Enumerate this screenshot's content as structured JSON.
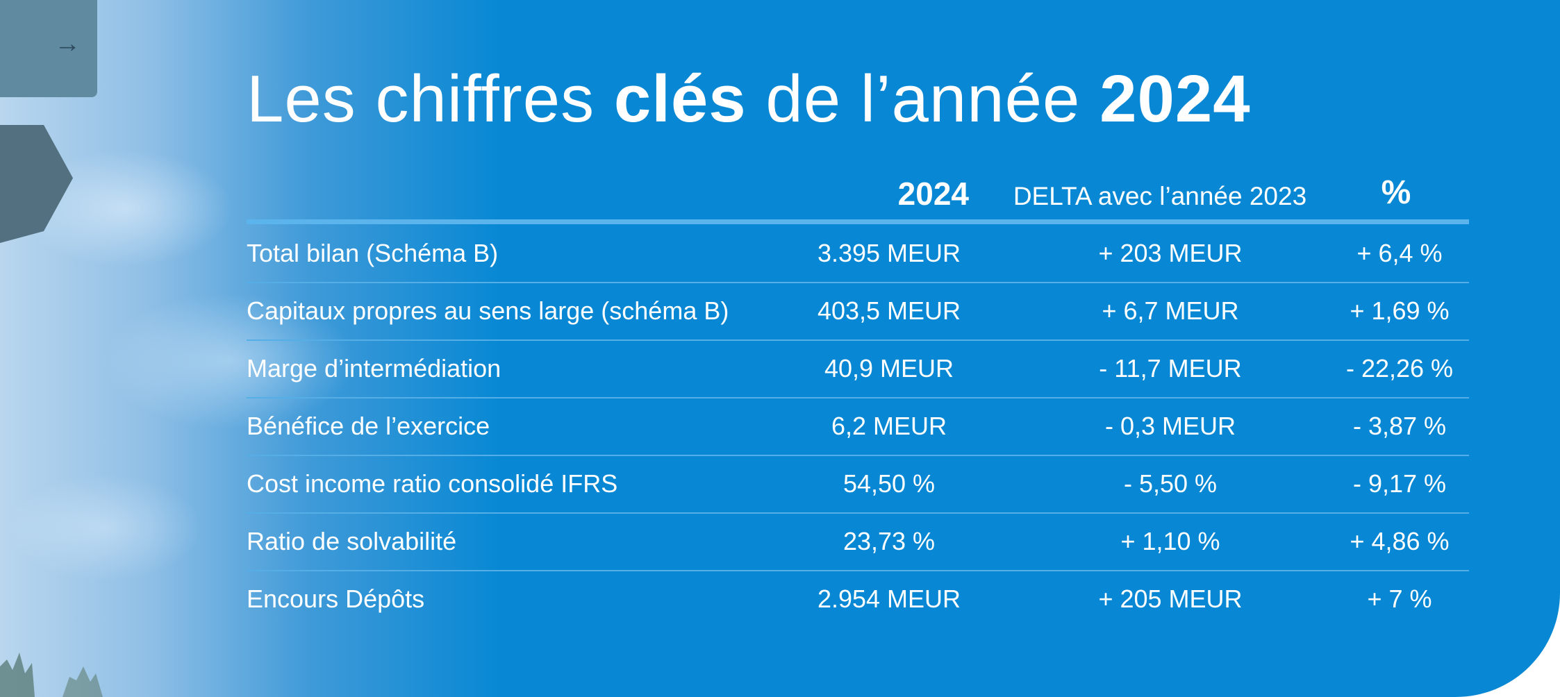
{
  "title": {
    "part1": "Les chiffres ",
    "bold1": "clés",
    "part2": " de l’année ",
    "bold2": "2024"
  },
  "header": {
    "year": "2024",
    "delta": "DELTA avec l’année 2023",
    "pct": "%"
  },
  "rows": [
    {
      "label": "Total bilan (Schéma B)",
      "value": "3.395 MEUR",
      "delta": "+ 203 MEUR",
      "pct": "+ 6,4 %"
    },
    {
      "label": "Capitaux propres au sens large (schéma B)",
      "value": "403,5 MEUR",
      "delta": "+ 6,7 MEUR",
      "pct": "+ 1,69 %"
    },
    {
      "label": "Marge d’intermédiation",
      "value": "40,9 MEUR",
      "delta": "- 11,7 MEUR",
      "pct": "- 22,26 %"
    },
    {
      "label": "Bénéfice de l’exercice",
      "value": "6,2 MEUR",
      "delta": "- 0,3 MEUR",
      "pct": "- 3,87 %"
    },
    {
      "label": "Cost income ratio consolidé IFRS",
      "value": "54,50 %",
      "delta": "- 5,50 %",
      "pct": "- 9,17 %"
    },
    {
      "label": "Ratio de solvabilité",
      "value": "23,73 %",
      "delta": "+ 1,10 %",
      "pct": "+ 4,86 %"
    },
    {
      "label": "Encours Dépôts",
      "value": "2.954 MEUR",
      "delta": "+ 205 MEUR",
      "pct": "+ 7 %"
    }
  ],
  "colors": {
    "panel": "#0888d4",
    "rule": "#5bb4ec",
    "text": "#ffffff"
  }
}
